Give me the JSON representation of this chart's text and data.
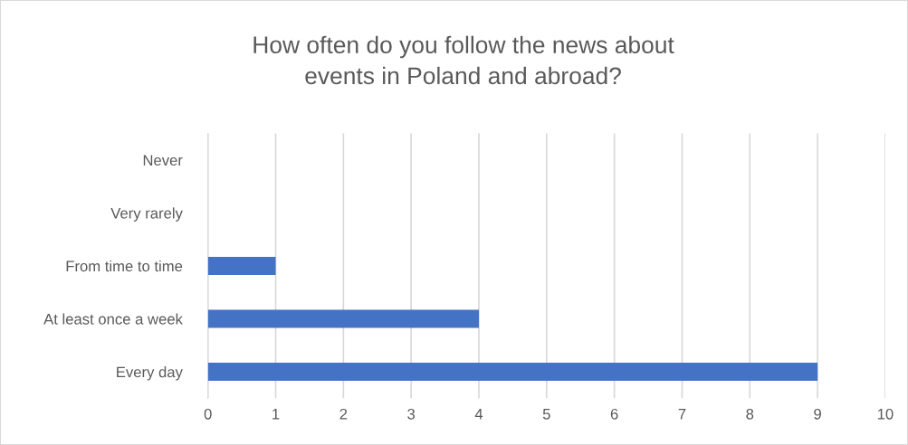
{
  "chart_data": {
    "type": "bar",
    "orientation": "horizontal",
    "title": "How often do you follow the news about\nevents in Poland and abroad?",
    "categories": [
      "Never",
      "Very rarely",
      "From time to time",
      "At least once a week",
      "Every day"
    ],
    "values": [
      0,
      0,
      1,
      4,
      9
    ],
    "color": "#4472c4",
    "xlim": [
      0,
      10
    ],
    "xticks": [
      0,
      1,
      2,
      3,
      4,
      5,
      6,
      7,
      8,
      9,
      10
    ],
    "grid": "x",
    "legend": false
  }
}
